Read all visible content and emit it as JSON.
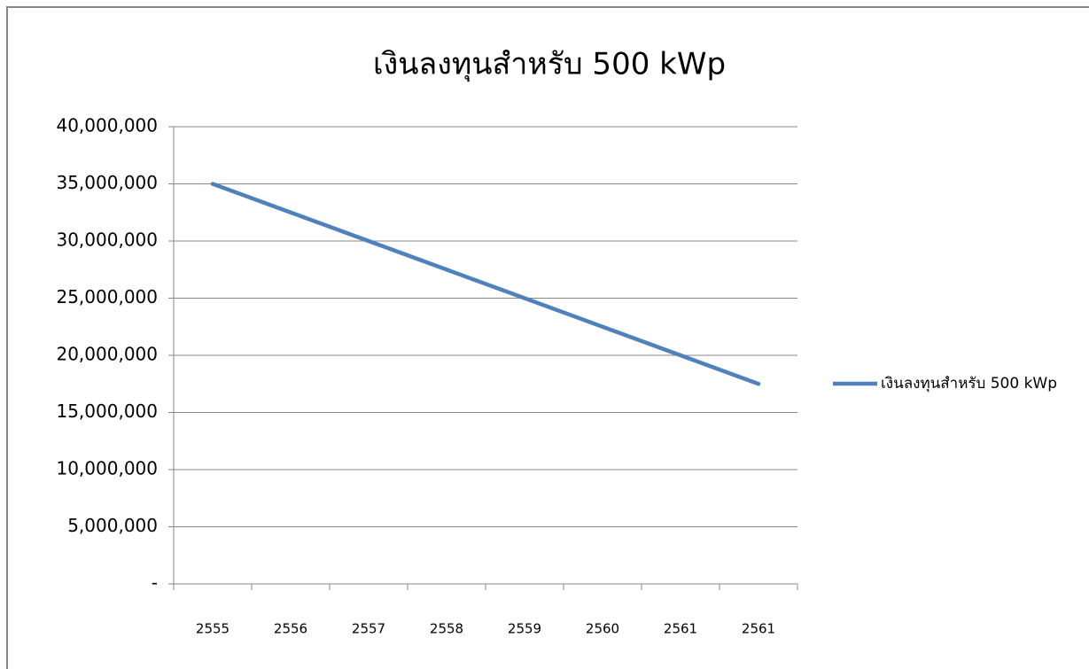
{
  "chart_data": {
    "type": "line",
    "title": "เงินลงทุนสำหรับ 500 kWp",
    "categories": [
      "2555",
      "2556",
      "2557",
      "2558",
      "2559",
      "2560",
      "2561",
      "2561"
    ],
    "series": [
      {
        "name": "เงินลงทุนสำหรับ 500 kWp",
        "color": "#4f81bd",
        "values": [
          35000000,
          32500000,
          30000000,
          27500000,
          25000000,
          22500000,
          20000000,
          17500000
        ]
      }
    ],
    "ylim": [
      0,
      40000000
    ],
    "yticks": [
      {
        "value": 0,
        "label": "-"
      },
      {
        "value": 5000000,
        "label": "5,000,000"
      },
      {
        "value": 10000000,
        "label": "10,000,000"
      },
      {
        "value": 15000000,
        "label": "15,000,000"
      },
      {
        "value": 20000000,
        "label": "20,000,000"
      },
      {
        "value": 25000000,
        "label": "25,000,000"
      },
      {
        "value": 30000000,
        "label": "30,000,000"
      },
      {
        "value": 35000000,
        "label": "35,000,000"
      },
      {
        "value": 40000000,
        "label": "40,000,000"
      }
    ],
    "grid": true,
    "legend": "right"
  }
}
